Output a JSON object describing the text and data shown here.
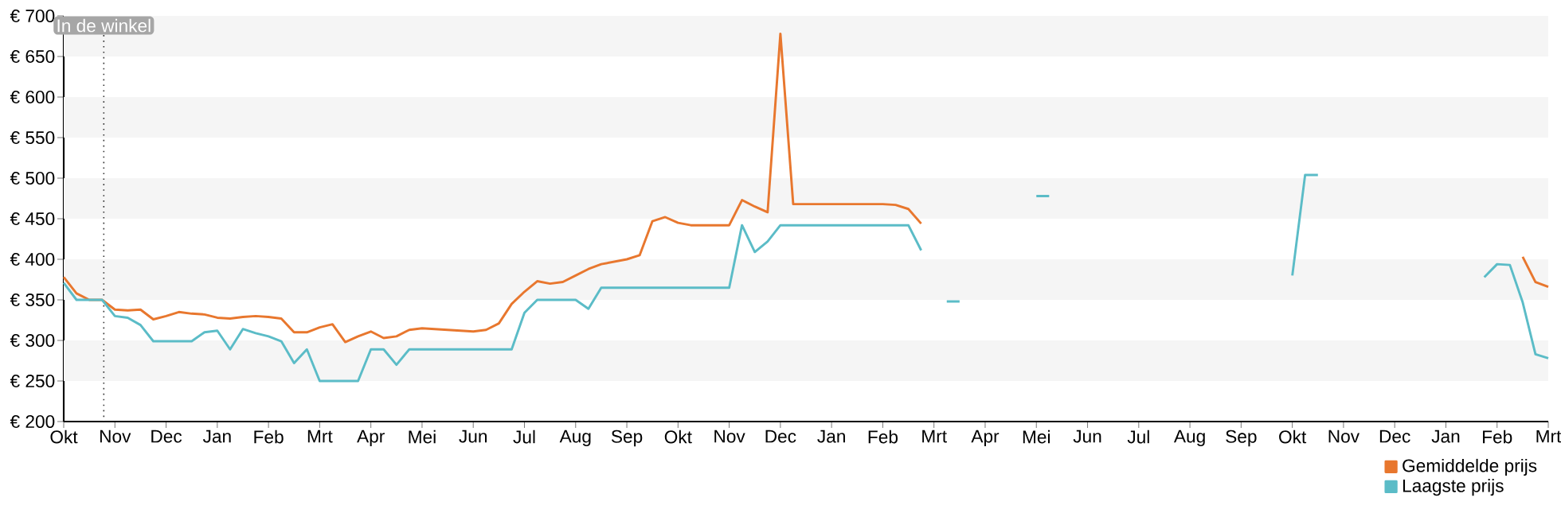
{
  "chart_data": {
    "type": "line",
    "categories": [
      "Okt",
      null,
      null,
      null,
      "Nov",
      null,
      null,
      null,
      "Dec",
      null,
      null,
      null,
      "Jan",
      null,
      null,
      null,
      "Feb",
      null,
      null,
      null,
      "Mrt",
      null,
      null,
      null,
      "Apr",
      null,
      null,
      null,
      "Mei",
      null,
      null,
      null,
      "Jun",
      null,
      null,
      null,
      "Jul",
      null,
      null,
      null,
      "Aug",
      null,
      null,
      null,
      "Sep",
      null,
      null,
      null,
      "Okt",
      null,
      null,
      null,
      "Nov",
      null,
      null,
      null,
      "Dec",
      null,
      null,
      null,
      "Jan",
      null,
      null,
      null,
      "Feb",
      null,
      null,
      null,
      "Mrt",
      null,
      null,
      null,
      "Apr",
      null,
      null,
      null,
      "Mei",
      null,
      null,
      null,
      "Jun",
      null,
      null,
      null,
      "Jul",
      null,
      null,
      null,
      "Aug",
      null,
      null,
      null,
      "Sep",
      null,
      null,
      null,
      "Okt",
      null,
      null,
      null,
      "Nov",
      null,
      null,
      null,
      "Dec",
      null,
      null,
      null,
      "Jan",
      null,
      null,
      null,
      "Feb",
      null,
      null,
      null,
      "Mrt"
    ],
    "ylim": [
      200,
      700
    ],
    "yticks": [
      {
        "value": 200,
        "label": "€ 200"
      },
      {
        "value": 250,
        "label": "€ 250"
      },
      {
        "value": 300,
        "label": "€ 300"
      },
      {
        "value": 350,
        "label": "€ 350"
      },
      {
        "value": 400,
        "label": "€ 400"
      },
      {
        "value": 450,
        "label": "€ 450"
      },
      {
        "value": 500,
        "label": "€ 500"
      },
      {
        "value": 550,
        "label": "€ 550"
      },
      {
        "value": 600,
        "label": "€ 600"
      },
      {
        "value": 650,
        "label": "€ 650"
      },
      {
        "value": 700,
        "label": "€ 700"
      }
    ],
    "grid": true,
    "legend": "bottom right",
    "annotations": [
      "In de winkel"
    ],
    "series": [
      {
        "name": "Gemiddelde prijs",
        "color": "#e8772e",
        "values": [
          378,
          358,
          350,
          350,
          338,
          337,
          338,
          326,
          330,
          335,
          333,
          332,
          328,
          327,
          329,
          330,
          329,
          327,
          310,
          310,
          316,
          320,
          298,
          305,
          311,
          303,
          305,
          313,
          315,
          314,
          313,
          312,
          311,
          313,
          321,
          345,
          360,
          373,
          370,
          372,
          380,
          388,
          394,
          397,
          400,
          405,
          447,
          452,
          445,
          442,
          442,
          442,
          442,
          473,
          465,
          458,
          678,
          468,
          468,
          468,
          468,
          468,
          468,
          468,
          468,
          467,
          462,
          444,
          null,
          null,
          null,
          null,
          null,
          null,
          null,
          null,
          null,
          null,
          null,
          null,
          null,
          null,
          null,
          null,
          null,
          null,
          null,
          null,
          null,
          null,
          null,
          null,
          null,
          null,
          null,
          null,
          null,
          null,
          null,
          null,
          null,
          null,
          null,
          null,
          null,
          null,
          null,
          null,
          null,
          null,
          null,
          null,
          null,
          null,
          403,
          372,
          366
        ]
      },
      {
        "name": "Laagste prijs",
        "color": "#5bbcc7",
        "values": [
          371,
          350,
          350,
          350,
          330,
          328,
          319,
          299,
          299,
          299,
          299,
          310,
          312,
          289,
          314,
          309,
          305,
          299,
          272,
          289,
          250,
          250,
          250,
          250,
          289,
          289,
          270,
          289,
          289,
          289,
          289,
          289,
          289,
          289,
          289,
          289,
          334,
          350,
          350,
          350,
          350,
          339,
          365,
          365,
          365,
          365,
          365,
          365,
          365,
          365,
          365,
          365,
          365,
          442,
          409,
          422,
          442,
          442,
          442,
          442,
          442,
          442,
          442,
          442,
          442,
          442,
          442,
          411,
          null,
          348,
          348,
          null,
          null,
          null,
          null,
          null,
          478,
          478,
          null,
          null,
          null,
          null,
          null,
          null,
          null,
          null,
          null,
          null,
          null,
          null,
          null,
          null,
          null,
          null,
          null,
          null,
          380,
          504,
          504,
          null,
          null,
          null,
          null,
          null,
          null,
          null,
          null,
          null,
          null,
          null,
          null,
          378,
          394,
          393,
          347,
          283,
          278
        ]
      }
    ]
  }
}
